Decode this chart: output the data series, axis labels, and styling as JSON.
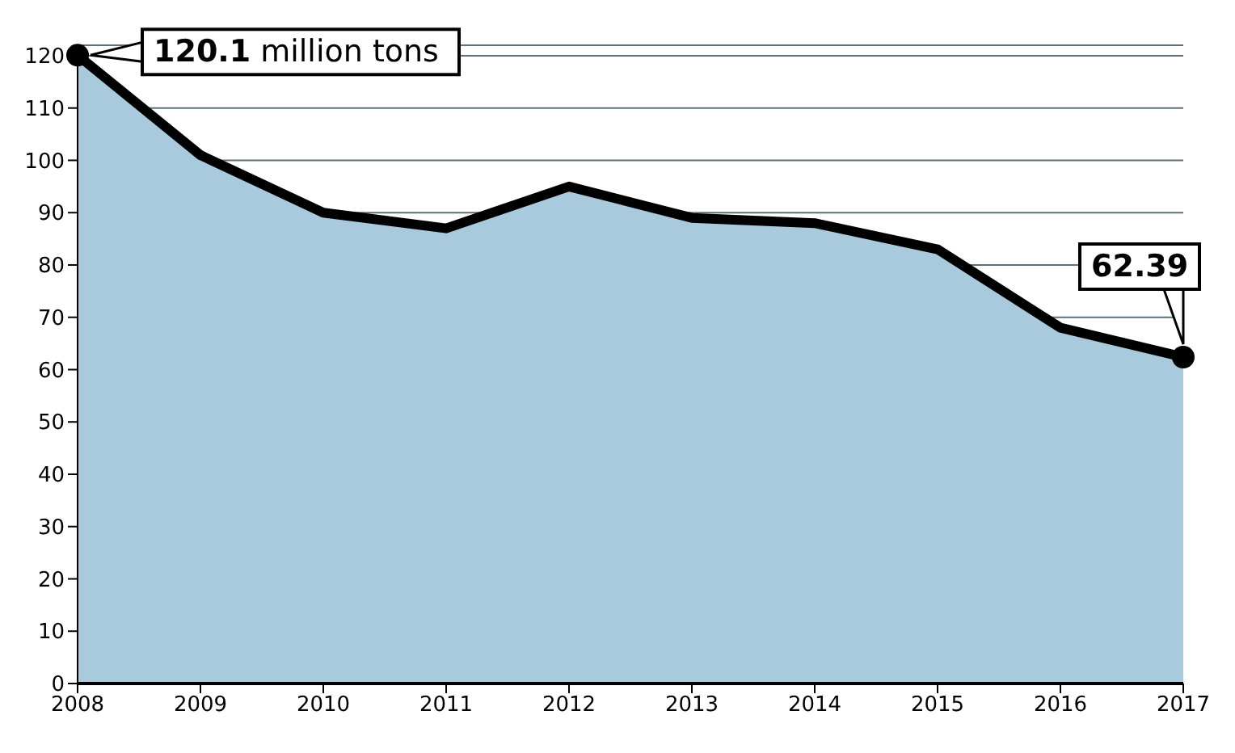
{
  "chart_data": {
    "type": "area",
    "x": [
      2008,
      2009,
      2010,
      2011,
      2012,
      2013,
      2014,
      2015,
      2016,
      2017
    ],
    "series": [
      {
        "color": "#a9c9dc",
        "values": [
          120.1,
          101,
          90,
          87,
          95,
          89,
          88,
          83,
          68,
          62.39
        ]
      }
    ],
    "xlim": [
      2008,
      2017
    ],
    "xticks": [
      2008,
      2009,
      2010,
      2011,
      2012,
      2013,
      2014,
      2015,
      2016,
      2017
    ],
    "ylim": [
      0,
      122
    ],
    "yticks": [
      0,
      10,
      20,
      30,
      40,
      50,
      60,
      70,
      80,
      90,
      100,
      110,
      120
    ],
    "grid": "y",
    "marker": "none",
    "line_style": "solid",
    "annotations": [
      {
        "text": "120.1 million tons",
        "x": 2008,
        "y": 120.1
      },
      {
        "text": "62.39",
        "x": 2017,
        "y": 62.39
      }
    ]
  }
}
